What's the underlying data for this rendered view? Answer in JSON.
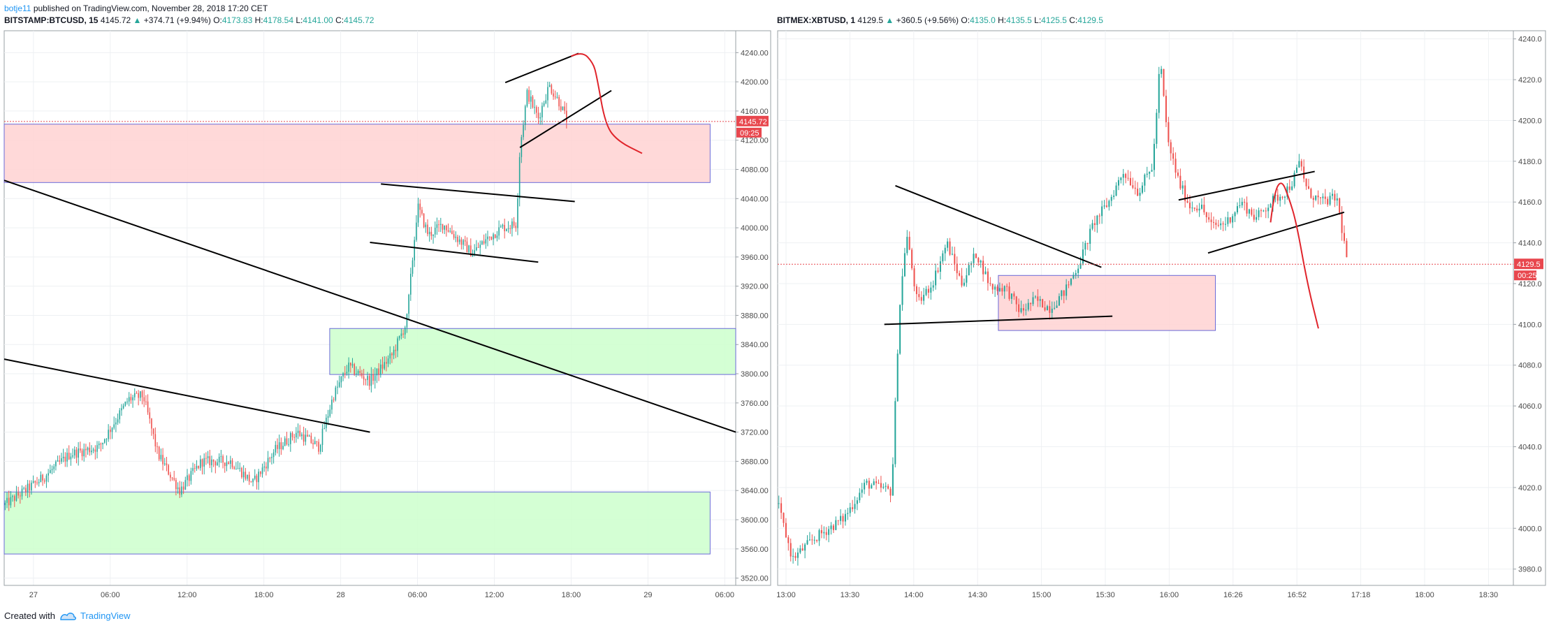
{
  "header": {
    "author": "botje11",
    "published_text": "published on TradingView.com, November 28, 2018 17:20 CET"
  },
  "footer": {
    "created_with": "Created with",
    "brand": "TradingView"
  },
  "colors": {
    "up": "#26a69a",
    "down": "#ef5350",
    "grid": "#eef0f3",
    "pink_zone": "#ffd2d2",
    "green_zone": "#ccffcc",
    "zone_border": "#6a6ad8",
    "badge": "#e8474e",
    "trendline": "#000000",
    "projection": "#e0242b"
  },
  "chart_data": [
    {
      "type": "candlestick",
      "symbol": "BITSTAMP:BTCUSD",
      "interval": "15",
      "last": "4145.72",
      "change": "+374.71 (+9.94%)",
      "open": "4173.83",
      "high": "4178.54",
      "low": "4141.00",
      "close": "4145.72",
      "price_badge": "4145.72",
      "countdown_badge": "09:25",
      "ylim": [
        3510,
        4270
      ],
      "y_ticks": [
        "4240.00",
        "4200.00",
        "4160.00",
        "4120.00",
        "4080.00",
        "4040.00",
        "4000.00",
        "3960.00",
        "3920.00",
        "3880.00",
        "3840.00",
        "3800.00",
        "3760.00",
        "3720.00",
        "3680.00",
        "3640.00",
        "3600.00",
        "3560.00",
        "3520.00"
      ],
      "x_ticks": [
        "27",
        "06:00",
        "12:00",
        "18:00",
        "28",
        "06:00",
        "12:00",
        "18:00",
        "29",
        "06:00"
      ],
      "zones": [
        {
          "color": "pink",
          "from_x": 0.0,
          "to_x": 0.965,
          "low": 4062,
          "high": 4142
        },
        {
          "color": "green",
          "from_x": 0.445,
          "to_x": 1.0,
          "low": 3799,
          "high": 3862
        },
        {
          "color": "green",
          "from_x": 0.0,
          "to_x": 0.965,
          "low": 3553,
          "high": 3638
        }
      ],
      "candle_path": [
        {
          "x": 0.0,
          "y": 3620
        },
        {
          "x": 0.05,
          "y": 3655
        },
        {
          "x": 0.09,
          "y": 3690
        },
        {
          "x": 0.13,
          "y": 3700
        },
        {
          "x": 0.17,
          "y": 3765
        },
        {
          "x": 0.19,
          "y": 3770
        },
        {
          "x": 0.21,
          "y": 3690
        },
        {
          "x": 0.24,
          "y": 3640
        },
        {
          "x": 0.27,
          "y": 3680
        },
        {
          "x": 0.31,
          "y": 3680
        },
        {
          "x": 0.34,
          "y": 3650
        },
        {
          "x": 0.37,
          "y": 3695
        },
        {
          "x": 0.4,
          "y": 3720
        },
        {
          "x": 0.43,
          "y": 3700
        },
        {
          "x": 0.45,
          "y": 3770
        },
        {
          "x": 0.47,
          "y": 3810
        },
        {
          "x": 0.5,
          "y": 3790
        },
        {
          "x": 0.53,
          "y": 3825
        },
        {
          "x": 0.55,
          "y": 3870
        },
        {
          "x": 0.565,
          "y": 4030
        },
        {
          "x": 0.58,
          "y": 3990
        },
        {
          "x": 0.6,
          "y": 4005
        },
        {
          "x": 0.62,
          "y": 3985
        },
        {
          "x": 0.64,
          "y": 3965
        },
        {
          "x": 0.66,
          "y": 3985
        },
        {
          "x": 0.68,
          "y": 4000
        },
        {
          "x": 0.7,
          "y": 4005
        },
        {
          "x": 0.705,
          "y": 4110
        },
        {
          "x": 0.715,
          "y": 4185
        },
        {
          "x": 0.73,
          "y": 4150
        },
        {
          "x": 0.745,
          "y": 4195
        },
        {
          "x": 0.76,
          "y": 4170
        },
        {
          "x": 0.77,
          "y": 4145
        }
      ],
      "trend_lines": [
        {
          "x1": 0.0,
          "y1": 4065,
          "x2": 1.0,
          "y2": 3720
        },
        {
          "x1": 0.0,
          "y1": 3820,
          "x2": 0.5,
          "y2": 3720
        },
        {
          "x1": 0.515,
          "y1": 4060,
          "x2": 0.78,
          "y2": 4036
        },
        {
          "x1": 0.5,
          "y1": 3980,
          "x2": 0.73,
          "y2": 3953
        },
        {
          "x1": 0.685,
          "y1": 4199,
          "x2": 0.785,
          "y2": 4239
        },
        {
          "x1": 0.705,
          "y1": 4110,
          "x2": 0.83,
          "y2": 4188
        }
      ],
      "projection": [
        {
          "x": 0.775,
          "y": 4235
        },
        {
          "x": 0.79,
          "y": 4242
        },
        {
          "x": 0.805,
          "y": 4226
        },
        {
          "x": 0.81,
          "y": 4208
        },
        {
          "x": 0.822,
          "y": 4140
        },
        {
          "x": 0.84,
          "y": 4118
        },
        {
          "x": 0.872,
          "y": 4102
        }
      ]
    },
    {
      "type": "candlestick",
      "symbol": "BITMEX:XBTUSD",
      "interval": "1",
      "last": "4129.5",
      "change": "+360.5 (+9.56%)",
      "open": "4135.0",
      "high": "4135.5",
      "low": "4125.5",
      "close": "4129.5",
      "price_badge": "4129.5",
      "countdown_badge": "00:25",
      "ylim": [
        3972,
        4244
      ],
      "y_ticks": [
        "4240.0",
        "4220.0",
        "4200.0",
        "4180.0",
        "4160.0",
        "4140.0",
        "4120.0",
        "4100.0",
        "4080.0",
        "4060.0",
        "4040.0",
        "4020.0",
        "4000.0",
        "3980.0"
      ],
      "x_ticks": [
        "13:00",
        "13:30",
        "14:00",
        "14:30",
        "15:00",
        "15:30",
        "16:00",
        "16:26",
        "16:52",
        "17:18",
        "18:00",
        "18:30"
      ],
      "zones": [
        {
          "color": "pink",
          "from_x": 0.3,
          "to_x": 0.595,
          "low": 4097,
          "high": 4124
        }
      ],
      "candle_path": [
        {
          "x": 0.0,
          "y": 4012
        },
        {
          "x": 0.02,
          "y": 3985
        },
        {
          "x": 0.05,
          "y": 3995
        },
        {
          "x": 0.09,
          "y": 4005
        },
        {
          "x": 0.12,
          "y": 4022
        },
        {
          "x": 0.155,
          "y": 4018
        },
        {
          "x": 0.165,
          "y": 4105
        },
        {
          "x": 0.175,
          "y": 4145
        },
        {
          "x": 0.19,
          "y": 4110
        },
        {
          "x": 0.21,
          "y": 4120
        },
        {
          "x": 0.23,
          "y": 4140
        },
        {
          "x": 0.25,
          "y": 4120
        },
        {
          "x": 0.27,
          "y": 4135
        },
        {
          "x": 0.29,
          "y": 4118
        },
        {
          "x": 0.31,
          "y": 4118
        },
        {
          "x": 0.33,
          "y": 4106
        },
        {
          "x": 0.35,
          "y": 4112
        },
        {
          "x": 0.37,
          "y": 4108
        },
        {
          "x": 0.39,
          "y": 4116
        },
        {
          "x": 0.41,
          "y": 4130
        },
        {
          "x": 0.43,
          "y": 4150
        },
        {
          "x": 0.45,
          "y": 4160
        },
        {
          "x": 0.47,
          "y": 4175
        },
        {
          "x": 0.49,
          "y": 4165
        },
        {
          "x": 0.51,
          "y": 4178
        },
        {
          "x": 0.52,
          "y": 4230
        },
        {
          "x": 0.53,
          "y": 4190
        },
        {
          "x": 0.545,
          "y": 4170
        },
        {
          "x": 0.56,
          "y": 4158
        },
        {
          "x": 0.575,
          "y": 4158
        },
        {
          "x": 0.59,
          "y": 4148
        },
        {
          "x": 0.61,
          "y": 4150
        },
        {
          "x": 0.63,
          "y": 4160
        },
        {
          "x": 0.65,
          "y": 4152
        },
        {
          "x": 0.67,
          "y": 4160
        },
        {
          "x": 0.69,
          "y": 4165
        },
        {
          "x": 0.7,
          "y": 4170
        },
        {
          "x": 0.71,
          "y": 4180
        },
        {
          "x": 0.72,
          "y": 4165
        },
        {
          "x": 0.74,
          "y": 4160
        },
        {
          "x": 0.76,
          "y": 4162
        },
        {
          "x": 0.77,
          "y": 4140
        },
        {
          "x": 0.775,
          "y": 4130
        }
      ],
      "trend_lines": [
        {
          "x1": 0.145,
          "y1": 4100,
          "x2": 0.455,
          "y2": 4104
        },
        {
          "x1": 0.16,
          "y1": 4168,
          "x2": 0.44,
          "y2": 4128
        },
        {
          "x1": 0.545,
          "y1": 4161,
          "x2": 0.73,
          "y2": 4175
        },
        {
          "x1": 0.585,
          "y1": 4135,
          "x2": 0.77,
          "y2": 4155
        }
      ],
      "projection": [
        {
          "x": 0.67,
          "y": 4150
        },
        {
          "x": 0.675,
          "y": 4165
        },
        {
          "x": 0.685,
          "y": 4171
        },
        {
          "x": 0.695,
          "y": 4162
        },
        {
          "x": 0.705,
          "y": 4150
        },
        {
          "x": 0.72,
          "y": 4120
        },
        {
          "x": 0.735,
          "y": 4098
        }
      ]
    }
  ]
}
